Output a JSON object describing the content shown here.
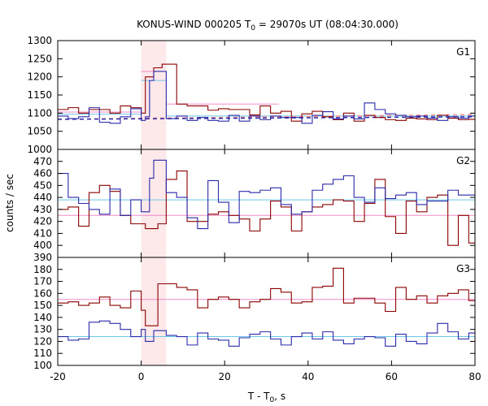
{
  "chart_data": {
    "type": "line",
    "title": "KONUS-WIND 000205 T",
    "title_sub": "0",
    "title_rest": " = 29070s UT (08:04:30.000)",
    "xlabel": "T - T",
    "xlabel_sub": "0",
    "xlabel_rest": ", s",
    "ylabel": "counts / sec",
    "xlim": [
      -20,
      80
    ],
    "x_ticks": [
      "-20",
      "0",
      "20",
      "40",
      "60",
      "80"
    ],
    "x_tick_values": [
      -20,
      0,
      20,
      40,
      60,
      80
    ],
    "shaded_interval": [
      0,
      6
    ],
    "colors": {
      "dark_red": "#8b0000",
      "blue": "#2a2aaa",
      "pink": "#f08cc8",
      "cyan": "#6cc8e8",
      "bg_red": "#ff8888",
      "shade": "#fde8ea"
    },
    "panels": [
      {
        "label": "G1",
        "ylim": [
          1000,
          1300
        ],
        "y_ticks": [
          1000,
          1050,
          1100,
          1150,
          1200,
          1250,
          1300
        ],
        "bin_edges": [
          -20,
          -17.5,
          -15,
          -12.5,
          -10,
          -7.5,
          -5,
          -2.5,
          0,
          1.0,
          2.0,
          3.0,
          4.0,
          5.0,
          6.0,
          8.5,
          11,
          13.5,
          16,
          18.5,
          21,
          23.5,
          26,
          28.5,
          31,
          33.5,
          36,
          38.5,
          41,
          43.5,
          46,
          48.5,
          51,
          53.5,
          56,
          58.5,
          61,
          63.5,
          66,
          68.5,
          71,
          73.5,
          76,
          78.5,
          80
        ],
        "series": [
          {
            "values": [
              1110,
              1115,
              1100,
              1110,
              1110,
              1100,
              1120,
              1115,
              1100,
              1200,
              1200,
              1225,
              1225,
              1235,
              1235,
              1125,
              1120,
              1120,
              1108,
              1112,
              1110,
              1110,
              1095,
              1120,
              1100,
              1105,
              1078,
              1098,
              1105,
              1090,
              1082,
              1100,
              1078,
              1094,
              1088,
              1082,
              1080,
              1086,
              1084,
              1082,
              1094,
              1086,
              1082,
              1083
            ]
          },
          {
            "values": [
              1092,
              1085,
              1090,
              1115,
              1075,
              1072,
              1090,
              1112,
              1080,
              1090,
              1190,
              1215,
              1215,
              1215,
              1085,
              1092,
              1080,
              1088,
              1080,
              1078,
              1094,
              1078,
              1092,
              1082,
              1092,
              1088,
              1088,
              1072,
              1094,
              1104,
              1084,
              1092,
              1084,
              1128,
              1110,
              1098,
              1094,
              1090,
              1092,
              1086,
              1080,
              1090,
              1086,
              1092
            ]
          }
        ],
        "fit_lines": [
          {
            "x": [
              -20,
              0
            ],
            "y": [
              1103,
              1103
            ],
            "style": "solid",
            "color": "pink"
          },
          {
            "x": [
              0,
              6
            ],
            "y": [
              1215,
              1215
            ],
            "style": "solid",
            "color": "pink"
          },
          {
            "x": [
              6,
              33
            ],
            "y": [
              1125,
              1125
            ],
            "style": "solid",
            "color": "pink"
          },
          {
            "x": [
              -20,
              0
            ],
            "y": [
              1097,
              1097
            ],
            "style": "solid",
            "color": "cyan"
          },
          {
            "x": [
              0,
              6
            ],
            "y": [
              1190,
              1190
            ],
            "style": "solid",
            "color": "cyan"
          },
          {
            "x": [
              6,
              80
            ],
            "y": [
              1092,
              1092
            ],
            "style": "solid",
            "color": "cyan"
          },
          {
            "x": [
              -20,
              80
            ],
            "y": [
              1083,
              1096
            ],
            "style": "dashed",
            "color": "bg_red"
          },
          {
            "x": [
              -20,
              80
            ],
            "y": [
              1083,
              1090
            ],
            "style": "dashed",
            "color": "blue"
          }
        ]
      },
      {
        "label": "G2",
        "ylim": [
          390,
          480
        ],
        "y_ticks": [
          390,
          400,
          410,
          420,
          430,
          440,
          450,
          460,
          470
        ],
        "bin_edges": [
          -20,
          -17.5,
          -15,
          -12.5,
          -10,
          -7.5,
          -5,
          -2.5,
          0,
          1.0,
          2.0,
          3.0,
          4.0,
          5.0,
          6.0,
          8.5,
          11,
          13.5,
          16,
          18.5,
          21,
          23.5,
          26,
          28.5,
          31,
          33.5,
          36,
          38.5,
          41,
          43.5,
          46,
          48.5,
          51,
          53.5,
          56,
          58.5,
          61,
          63.5,
          66,
          68.5,
          71,
          73.5,
          76,
          78.5,
          80
        ],
        "series": [
          {
            "values": [
              430,
              432,
              416,
              444,
              450,
              445,
              425,
              418,
              418,
              414,
              414,
              414,
              418,
              418,
              455,
              462,
              420,
              420,
              426,
              428,
              425,
              422,
              412,
              422,
              437,
              432,
              412,
              428,
              432,
              434,
              438,
              437,
              420,
              435,
              455,
              424,
              410,
              437,
              428,
              440,
              442,
              400,
              425,
              402
            ]
          },
          {
            "values": [
              460,
              440,
              435,
              430,
              426,
              447,
              425,
              438,
              428,
              428,
              456,
              471,
              471,
              471,
              444,
              440,
              423,
              414,
              454,
              436,
              419,
              445,
              444,
              446,
              448,
              434,
              426,
              428,
              446,
              451,
              455,
              458,
              440,
              436,
              448,
              439,
              442,
              444,
              434,
              437,
              437,
              446,
              442,
              442
            ]
          }
        ],
        "fit_lines": [
          {
            "x": [
              -20,
              80
            ],
            "y": [
              425,
              425
            ],
            "style": "solid",
            "color": "pink"
          },
          {
            "x": [
              -20,
              80
            ],
            "y": [
              438,
              438
            ],
            "style": "solid",
            "color": "cyan"
          }
        ]
      },
      {
        "label": "G3",
        "ylim": [
          100,
          190
        ],
        "y_ticks": [
          100,
          110,
          120,
          130,
          140,
          150,
          160,
          170,
          180
        ],
        "bin_edges": [
          -20,
          -17.5,
          -15,
          -12.5,
          -10,
          -7.5,
          -5,
          -2.5,
          0,
          1.0,
          2.0,
          3.0,
          4.0,
          5.0,
          6.0,
          8.5,
          11,
          13.5,
          16,
          18.5,
          21,
          23.5,
          26,
          28.5,
          31,
          33.5,
          36,
          38.5,
          41,
          43.5,
          46,
          48.5,
          51,
          53.5,
          56,
          58.5,
          61,
          63.5,
          66,
          68.5,
          71,
          73.5,
          76,
          78.5,
          80
        ],
        "series": [
          {
            "values": [
              152,
              153,
              150,
              152,
              157,
              150,
              148,
              162,
              146,
              133,
              133,
              133,
              168,
              168,
              168,
              165,
              163,
              148,
              155,
              157,
              155,
              148,
              153,
              155,
              164,
              161,
              152,
              153,
              165,
              166,
              181,
              152,
              156,
              156,
              152,
              145,
              165,
              155,
              158,
              152,
              158,
              160,
              163,
              154
            ]
          },
          {
            "values": [
              124,
              121,
              122,
              136,
              137,
              135,
              130,
              124,
              130,
              120,
              120,
              129,
              129,
              129,
              125,
              124,
              117,
              127,
              122,
              121,
              116,
              123,
              126,
              128,
              122,
              117,
              124,
              127,
              122,
              128,
              121,
              118,
              122,
              124,
              123,
              116,
              126,
              120,
              118,
              127,
              135,
              128,
              122,
              127
            ]
          }
        ],
        "fit_lines": [
          {
            "x": [
              -20,
              80
            ],
            "y": [
              155,
              155
            ],
            "style": "solid",
            "color": "pink"
          },
          {
            "x": [
              -20,
              80
            ],
            "y": [
              124,
              124
            ],
            "style": "solid",
            "color": "cyan"
          }
        ]
      }
    ]
  }
}
